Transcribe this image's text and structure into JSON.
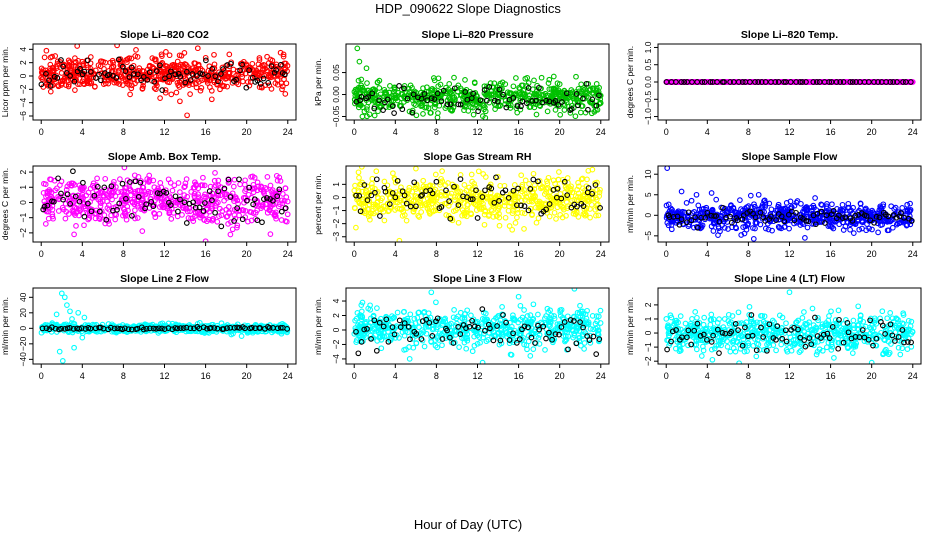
{
  "figure": {
    "title": "HDP_090622  Slope Diagnostics",
    "xlabel": "Hour of Day (UTC)"
  },
  "chart_data": [
    {
      "type": "scatter",
      "title": "Slope Li–820 CO2",
      "ylabel": "Licor ppm per min.",
      "xlim": [
        -0.8,
        24.8
      ],
      "ylim": [
        -6.6,
        4.8
      ],
      "xticks": [
        0,
        4,
        8,
        12,
        16,
        20,
        24
      ],
      "yticks": [
        -6,
        -4,
        -2,
        0,
        2,
        4
      ],
      "ytick_labels": [
        "−6",
        "−4",
        "−2",
        "0",
        "2",
        "4"
      ],
      "color": "#ff0000",
      "n_points": 620,
      "spread": 1.3,
      "center": 0.3,
      "outliers": [
        [
          3.5,
          4.5
        ],
        [
          14.2,
          -5.9
        ],
        [
          13.5,
          -3.8
        ],
        [
          0.5,
          3.8
        ],
        [
          23.3,
          3.5
        ],
        [
          16.6,
          -3.5
        ]
      ],
      "black_series": {
        "n": 80,
        "spread": 1.1,
        "center": 0.2
      },
      "grid": false
    },
    {
      "type": "scatter",
      "title": "Slope Li–820 Pressure",
      "ylabel": "kPa per min.",
      "xlim": [
        -0.8,
        24.8
      ],
      "ylim": [
        -0.058,
        0.115
      ],
      "xticks": [
        0,
        4,
        8,
        12,
        16,
        20,
        24
      ],
      "yticks": [
        -0.05,
        0,
        0.05
      ],
      "ytick_labels": [
        "−0.05",
        "0.00",
        "0.05"
      ],
      "color": "#00c000",
      "n_points": 620,
      "spread": 0.017,
      "center": -0.006,
      "outliers": [
        [
          0.3,
          0.105
        ],
        [
          0.5,
          0.075
        ],
        [
          1.2,
          0.06
        ],
        [
          0.8,
          -0.05
        ],
        [
          1.5,
          -0.045
        ]
      ],
      "black_series": {
        "n": 75,
        "spread": 0.014,
        "center": -0.01
      },
      "grid": false
    },
    {
      "type": "scatter",
      "title": "Slope Li–820 Temp.",
      "ylabel": "degrees C per min.",
      "xlim": [
        -0.8,
        24.8
      ],
      "ylim": [
        -1.1,
        1.1
      ],
      "xticks": [
        0,
        4,
        8,
        12,
        16,
        20,
        24
      ],
      "yticks": [
        -1,
        -0.5,
        0,
        0.5,
        1
      ],
      "ytick_labels": [
        "−1.0",
        "−0.5",
        "0.0",
        "0.5",
        "1.0"
      ],
      "color": "#ff00ff",
      "n_points": 620,
      "spread": 0.0,
      "center": 0.0,
      "outliers": [],
      "black_series": {
        "n": 60,
        "spread": 0.0,
        "center": 0.0
      },
      "grid": false
    },
    {
      "type": "scatter",
      "title": "Slope Amb. Box Temp.",
      "ylabel": "degrees C per min.",
      "xlim": [
        -0.8,
        24.8
      ],
      "ylim": [
        -2.6,
        2.4
      ],
      "xticks": [
        0,
        4,
        8,
        12,
        16,
        20,
        24
      ],
      "yticks": [
        -2,
        -1,
        0,
        1,
        2
      ],
      "ytick_labels": [
        "−2",
        "−1",
        "0",
        "1",
        "2"
      ],
      "color": "#ff00ff",
      "n_points": 620,
      "spread": 0.75,
      "center": 0.1,
      "outliers": [
        [
          8.1,
          2.3
        ],
        [
          16.0,
          -2.6
        ],
        [
          3.2,
          -2.1
        ]
      ],
      "black_series": {
        "n": 80,
        "spread": 0.7,
        "center": 0.1
      },
      "grid": false
    },
    {
      "type": "scatter",
      "title": "Slope Gas Stream RH",
      "ylabel": "percent per min.",
      "xlim": [
        -0.8,
        24.8
      ],
      "ylim": [
        -3.4,
        2.4
      ],
      "xticks": [
        0,
        4,
        8,
        12,
        16,
        20,
        24
      ],
      "yticks": [
        -3,
        -2,
        -1,
        0,
        1
      ],
      "ytick_labels": [
        "−3",
        "−2",
        "−1",
        "0",
        "1"
      ],
      "color": "#ffff00",
      "n_points": 620,
      "spread": 0.85,
      "center": -0.1,
      "outliers": [
        [
          4.4,
          -3.3
        ],
        [
          6.0,
          2.2
        ]
      ],
      "black_series": {
        "n": 80,
        "spread": 0.8,
        "center": -0.1
      },
      "grid": false
    },
    {
      "type": "scatter",
      "title": "Slope Sample Flow",
      "ylabel": "ml/min per min.",
      "xlim": [
        -0.8,
        24.8
      ],
      "ylim": [
        -6.5,
        12.0
      ],
      "xticks": [
        0,
        4,
        8,
        12,
        16,
        20,
        24
      ],
      "yticks": [
        -5,
        0,
        5,
        10
      ],
      "ytick_labels": [
        "−5",
        "0",
        "5",
        "10"
      ],
      "color": "#0000ff",
      "n_points": 620,
      "spread": 1.6,
      "center": -0.3,
      "outliers": [
        [
          0.1,
          11.5
        ],
        [
          1.5,
          5.8
        ],
        [
          13.5,
          -5.5
        ],
        [
          7.3,
          -4.8
        ],
        [
          9.0,
          5.0
        ]
      ],
      "black_series": {
        "n": 80,
        "spread": 0.9,
        "center": -0.4
      },
      "grid": false
    },
    {
      "type": "scatter",
      "title": "Slope Line 2 Flow",
      "ylabel": "ml/min per min.",
      "xlim": [
        -0.8,
        24.8
      ],
      "ylim": [
        -46,
        52
      ],
      "xticks": [
        0,
        4,
        8,
        12,
        16,
        20,
        24
      ],
      "yticks": [
        -40,
        -20,
        0,
        20,
        40
      ],
      "ytick_labels": [
        "−40",
        "−20",
        "0",
        "20",
        "40"
      ],
      "color": "#00ffff",
      "n_points": 620,
      "spread": 2.5,
      "center": 0.0,
      "outliers": [
        [
          2.0,
          45
        ],
        [
          2.3,
          40
        ],
        [
          2.1,
          -42
        ],
        [
          2.5,
          30
        ],
        [
          3.6,
          20
        ],
        [
          3.2,
          -25
        ],
        [
          1.8,
          -30
        ],
        [
          2.8,
          22
        ],
        [
          4.2,
          14
        ],
        [
          4.0,
          -12
        ],
        [
          18.5,
          -8
        ],
        [
          19.5,
          -10
        ],
        [
          1.5,
          18
        ],
        [
          3.0,
          12
        ]
      ],
      "black_series": {
        "n": 80,
        "spread": 0.8,
        "center": 0.0
      },
      "grid": false
    },
    {
      "type": "scatter",
      "title": "Slope Line 3 Flow",
      "ylabel": "ml/min per min.",
      "xlim": [
        -0.8,
        24.8
      ],
      "ylim": [
        -4.7,
        5.8
      ],
      "xticks": [
        0,
        4,
        8,
        12,
        16,
        20,
        24
      ],
      "yticks": [
        -4,
        -2,
        0,
        2,
        4
      ],
      "ytick_labels": [
        "−4",
        "−2",
        "0",
        "2",
        "4"
      ],
      "color": "#00ffff",
      "n_points": 620,
      "spread": 1.3,
      "center": 0.2,
      "outliers": [
        [
          7.5,
          5.2
        ],
        [
          12.5,
          -4.5
        ],
        [
          5.4,
          -4.0
        ],
        [
          16.0,
          4.6
        ]
      ],
      "black_series": {
        "n": 80,
        "spread": 1.3,
        "center": 0.0
      },
      "grid": false
    },
    {
      "type": "scatter",
      "title": "Slope Line 4 (LT) Flow",
      "ylabel": "ml/min per min.",
      "xlim": [
        -0.8,
        24.8
      ],
      "ylim": [
        -2.2,
        3.2
      ],
      "xticks": [
        0,
        4,
        8,
        12,
        16,
        20,
        24
      ],
      "yticks": [
        -2,
        -1,
        0,
        1,
        2
      ],
      "ytick_labels": [
        "−2",
        "−1",
        "0",
        "1",
        "2"
      ],
      "color": "#00ffff",
      "n_points": 620,
      "spread": 0.65,
      "center": 0.0,
      "outliers": [
        [
          12.0,
          2.9
        ],
        [
          20.0,
          -2.1
        ],
        [
          4.5,
          -1.9
        ]
      ],
      "black_series": {
        "n": 80,
        "spread": 0.6,
        "center": -0.1
      },
      "grid": false
    }
  ]
}
